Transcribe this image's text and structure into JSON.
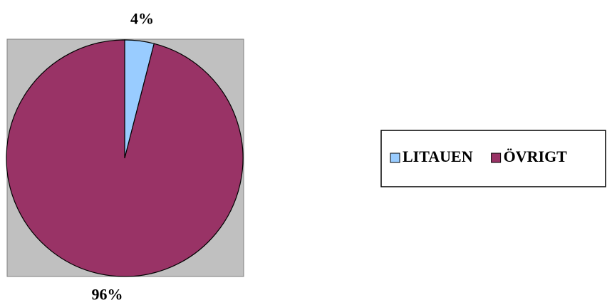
{
  "chart_data": {
    "type": "pie",
    "categories": [
      "LITAUEN",
      "ÖVRIGT"
    ],
    "values": [
      4,
      96
    ],
    "value_labels": [
      "4%",
      "96%"
    ],
    "colors": [
      "#99ccff",
      "#993366"
    ],
    "legend": "right"
  }
}
